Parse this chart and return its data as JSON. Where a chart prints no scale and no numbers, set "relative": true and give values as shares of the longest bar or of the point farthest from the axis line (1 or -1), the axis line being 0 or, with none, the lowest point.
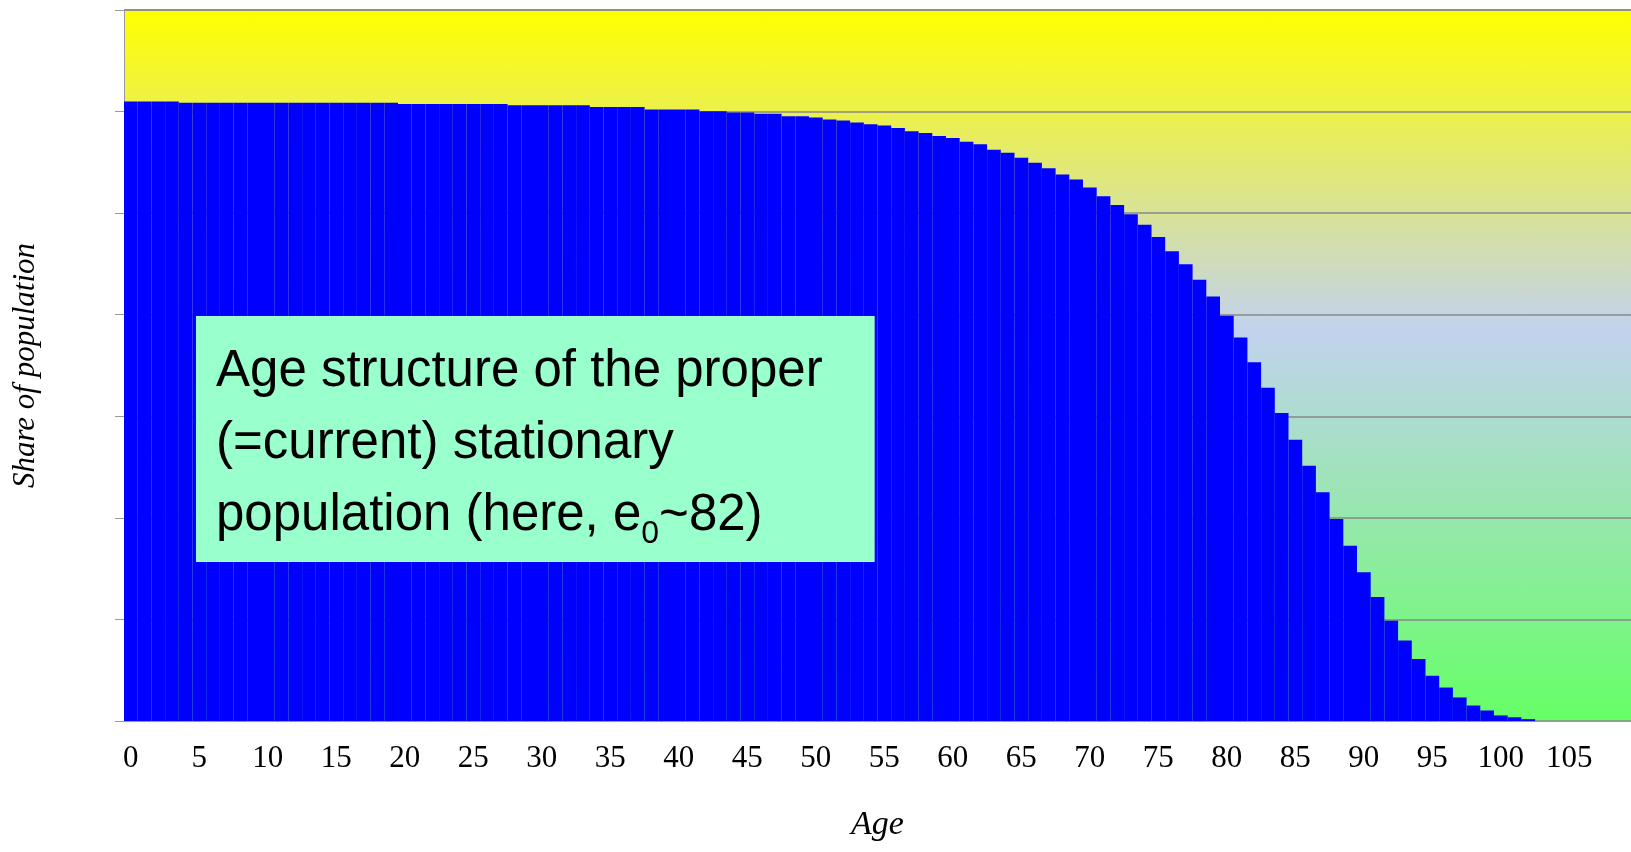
{
  "chart_data": {
    "type": "bar",
    "relative": true,
    "xlabel": "Age",
    "ylabel": "Share of population",
    "color": "#0000ff",
    "grid": "y",
    "annotations": [
      "Age structure of the proper (=current) stationary population (here, e$_{0}$~82)"
    ],
    "categories": [
      "0",
      null,
      null,
      null,
      null,
      "5",
      null,
      null,
      null,
      null,
      "10",
      null,
      null,
      null,
      null,
      "15",
      null,
      null,
      null,
      null,
      "20",
      null,
      null,
      null,
      null,
      "25",
      null,
      null,
      null,
      null,
      "30",
      null,
      null,
      null,
      null,
      "35",
      null,
      null,
      null,
      null,
      "40",
      null,
      null,
      null,
      null,
      "45",
      null,
      null,
      null,
      null,
      "50",
      null,
      null,
      null,
      null,
      "55",
      null,
      null,
      null,
      null,
      "60",
      null,
      null,
      null,
      null,
      "65",
      null,
      null,
      null,
      null,
      "70",
      null,
      null,
      null,
      null,
      "75",
      null,
      null,
      null,
      null,
      "80",
      null,
      null,
      null,
      null,
      "85",
      null,
      null,
      null,
      null,
      "90",
      null,
      null,
      null,
      null,
      "95",
      null,
      null,
      null,
      null,
      "100",
      null,
      null,
      null,
      null,
      "105",
      null,
      null,
      null,
      null
    ],
    "values": [
      1,
      1,
      1,
      1,
      0.998,
      0.998,
      0.998,
      0.998,
      0.998,
      0.998,
      0.998,
      0.998,
      0.998,
      0.998,
      0.998,
      0.998,
      0.998,
      0.998,
      0.998,
      0.998,
      0.996,
      0.996,
      0.996,
      0.996,
      0.996,
      0.996,
      0.996,
      0.996,
      0.994,
      0.994,
      0.994,
      0.994,
      0.994,
      0.994,
      0.991,
      0.991,
      0.991,
      0.991,
      0.987,
      0.987,
      0.987,
      0.987,
      0.984,
      0.984,
      0.982,
      0.982,
      0.98,
      0.98,
      0.976,
      0.976,
      0.974,
      0.971,
      0.969,
      0.966,
      0.963,
      0.961,
      0.957,
      0.952,
      0.949,
      0.944,
      0.941,
      0.935,
      0.931,
      0.922,
      0.917,
      0.909,
      0.901,
      0.892,
      0.882,
      0.874,
      0.861,
      0.847,
      0.833,
      0.818,
      0.801,
      0.781,
      0.758,
      0.737,
      0.712,
      0.685,
      0.654,
      0.619,
      0.579,
      0.538,
      0.497,
      0.454,
      0.412,
      0.369,
      0.326,
      0.283,
      0.24,
      0.2,
      0.162,
      0.13,
      0.1,
      0.073,
      0.054,
      0.038,
      0.025,
      0.017,
      0.009,
      0.006,
      0.003,
      0,
      0,
      0,
      0,
      0,
      0,
      0
    ]
  }
}
